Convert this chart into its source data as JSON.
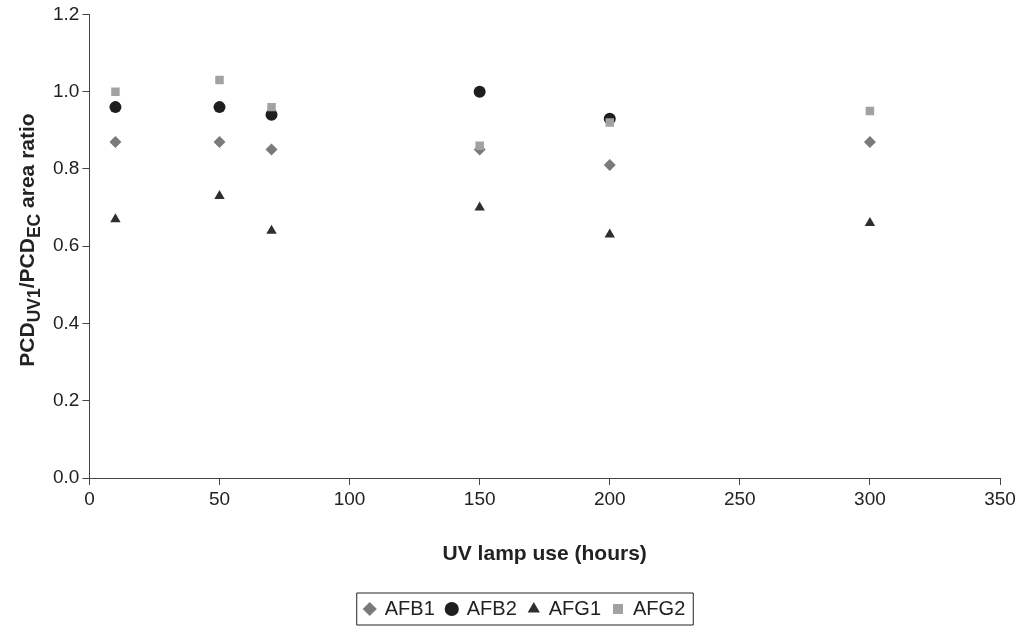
{
  "chart_data": {
    "type": "scatter",
    "xlabel": "UV lamp use (hours)",
    "ylabel": "PCD$_{UV1}$/PCD$_{EC}$ area ratio",
    "x": [
      10,
      50,
      70,
      150,
      200,
      300
    ],
    "series": [
      {
        "name": "AFB1",
        "color": "#7a7a7a",
        "marker": "diamond",
        "values": [
          0.87,
          0.87,
          0.85,
          0.85,
          0.81,
          0.87
        ]
      },
      {
        "name": "AFB2",
        "color": "#1e1e1e",
        "marker": "circle",
        "values": [
          0.96,
          0.96,
          0.94,
          1.0,
          0.93,
          null
        ]
      },
      {
        "name": "AFG1",
        "color": "#2e2e2e",
        "marker": "triangle",
        "values": [
          0.67,
          0.73,
          0.64,
          0.7,
          0.63,
          0.66
        ]
      },
      {
        "name": "AFG2",
        "color": "#a2a2a2",
        "marker": "square",
        "values": [
          1.0,
          1.03,
          0.96,
          0.86,
          0.92,
          0.95
        ]
      }
    ],
    "xlim": [
      0,
      350
    ],
    "xticks": [
      0,
      50,
      100,
      150,
      200,
      250,
      300,
      350
    ],
    "ylim": [
      0,
      1.2
    ],
    "yticks": [
      {
        "value": 0,
        "label": "0.0"
      },
      {
        "value": 0.2,
        "label": "0.2"
      },
      {
        "value": 0.4,
        "label": "0.4"
      },
      {
        "value": 0.6,
        "label": "0.6"
      },
      {
        "value": 0.8,
        "label": "0.8"
      },
      {
        "value": 1.0,
        "label": "1.0"
      },
      {
        "value": 1.2,
        "label": "1.2"
      }
    ],
    "grid": false,
    "legend": "bottom"
  }
}
